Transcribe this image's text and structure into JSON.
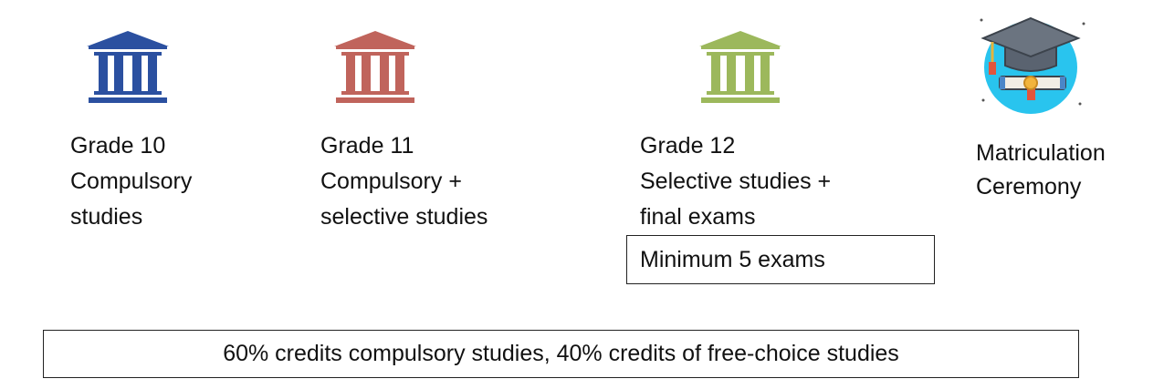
{
  "stages": [
    {
      "lines": [
        "Grade 10",
        "Compulsory",
        "studies"
      ],
      "icon": "building-icon",
      "color": "#2b50a0"
    },
    {
      "lines": [
        "Grade 11",
        "Compulsory +",
        "selective studies"
      ],
      "icon": "building-icon",
      "color": "#c0645c"
    },
    {
      "lines": [
        "Grade 12",
        "Selective studies +",
        "final exams"
      ],
      "icon": "building-icon",
      "color": "#9cb85c"
    },
    {
      "lines": [
        "Matriculation",
        "Ceremony"
      ],
      "icon": "graduation-cap-diploma-icon",
      "color": "#29c4ee"
    }
  ],
  "exam_note": "Minimum 5 exams",
  "credits_note": "60% credits compulsory studies, 40% credits of free-choice studies"
}
